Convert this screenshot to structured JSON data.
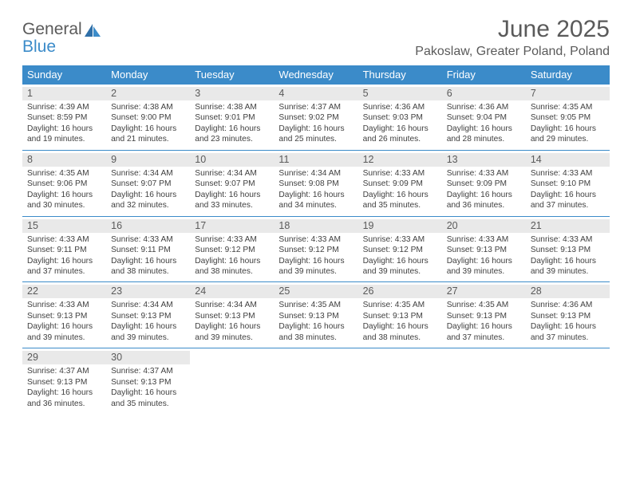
{
  "brand": {
    "word1": "General",
    "word2": "Blue"
  },
  "title": "June 2025",
  "location": "Pakoslaw, Greater Poland, Poland",
  "colors": {
    "accent": "#3b8bc9",
    "header_text": "#5a5a5a",
    "daynum_bg": "#e9e9e9",
    "body_text": "#404040",
    "background": "#ffffff"
  },
  "weekdays": [
    "Sunday",
    "Monday",
    "Tuesday",
    "Wednesday",
    "Thursday",
    "Friday",
    "Saturday"
  ],
  "weeks": [
    [
      {
        "n": "1",
        "sr": "4:39 AM",
        "ss": "8:59 PM",
        "dl1": "16 hours",
        "dl2": "and 19 minutes."
      },
      {
        "n": "2",
        "sr": "4:38 AM",
        "ss": "9:00 PM",
        "dl1": "16 hours",
        "dl2": "and 21 minutes."
      },
      {
        "n": "3",
        "sr": "4:38 AM",
        "ss": "9:01 PM",
        "dl1": "16 hours",
        "dl2": "and 23 minutes."
      },
      {
        "n": "4",
        "sr": "4:37 AM",
        "ss": "9:02 PM",
        "dl1": "16 hours",
        "dl2": "and 25 minutes."
      },
      {
        "n": "5",
        "sr": "4:36 AM",
        "ss": "9:03 PM",
        "dl1": "16 hours",
        "dl2": "and 26 minutes."
      },
      {
        "n": "6",
        "sr": "4:36 AM",
        "ss": "9:04 PM",
        "dl1": "16 hours",
        "dl2": "and 28 minutes."
      },
      {
        "n": "7",
        "sr": "4:35 AM",
        "ss": "9:05 PM",
        "dl1": "16 hours",
        "dl2": "and 29 minutes."
      }
    ],
    [
      {
        "n": "8",
        "sr": "4:35 AM",
        "ss": "9:06 PM",
        "dl1": "16 hours",
        "dl2": "and 30 minutes."
      },
      {
        "n": "9",
        "sr": "4:34 AM",
        "ss": "9:07 PM",
        "dl1": "16 hours",
        "dl2": "and 32 minutes."
      },
      {
        "n": "10",
        "sr": "4:34 AM",
        "ss": "9:07 PM",
        "dl1": "16 hours",
        "dl2": "and 33 minutes."
      },
      {
        "n": "11",
        "sr": "4:34 AM",
        "ss": "9:08 PM",
        "dl1": "16 hours",
        "dl2": "and 34 minutes."
      },
      {
        "n": "12",
        "sr": "4:33 AM",
        "ss": "9:09 PM",
        "dl1": "16 hours",
        "dl2": "and 35 minutes."
      },
      {
        "n": "13",
        "sr": "4:33 AM",
        "ss": "9:09 PM",
        "dl1": "16 hours",
        "dl2": "and 36 minutes."
      },
      {
        "n": "14",
        "sr": "4:33 AM",
        "ss": "9:10 PM",
        "dl1": "16 hours",
        "dl2": "and 37 minutes."
      }
    ],
    [
      {
        "n": "15",
        "sr": "4:33 AM",
        "ss": "9:11 PM",
        "dl1": "16 hours",
        "dl2": "and 37 minutes."
      },
      {
        "n": "16",
        "sr": "4:33 AM",
        "ss": "9:11 PM",
        "dl1": "16 hours",
        "dl2": "and 38 minutes."
      },
      {
        "n": "17",
        "sr": "4:33 AM",
        "ss": "9:12 PM",
        "dl1": "16 hours",
        "dl2": "and 38 minutes."
      },
      {
        "n": "18",
        "sr": "4:33 AM",
        "ss": "9:12 PM",
        "dl1": "16 hours",
        "dl2": "and 39 minutes."
      },
      {
        "n": "19",
        "sr": "4:33 AM",
        "ss": "9:12 PM",
        "dl1": "16 hours",
        "dl2": "and 39 minutes."
      },
      {
        "n": "20",
        "sr": "4:33 AM",
        "ss": "9:13 PM",
        "dl1": "16 hours",
        "dl2": "and 39 minutes."
      },
      {
        "n": "21",
        "sr": "4:33 AM",
        "ss": "9:13 PM",
        "dl1": "16 hours",
        "dl2": "and 39 minutes."
      }
    ],
    [
      {
        "n": "22",
        "sr": "4:33 AM",
        "ss": "9:13 PM",
        "dl1": "16 hours",
        "dl2": "and 39 minutes."
      },
      {
        "n": "23",
        "sr": "4:34 AM",
        "ss": "9:13 PM",
        "dl1": "16 hours",
        "dl2": "and 39 minutes."
      },
      {
        "n": "24",
        "sr": "4:34 AM",
        "ss": "9:13 PM",
        "dl1": "16 hours",
        "dl2": "and 39 minutes."
      },
      {
        "n": "25",
        "sr": "4:35 AM",
        "ss": "9:13 PM",
        "dl1": "16 hours",
        "dl2": "and 38 minutes."
      },
      {
        "n": "26",
        "sr": "4:35 AM",
        "ss": "9:13 PM",
        "dl1": "16 hours",
        "dl2": "and 38 minutes."
      },
      {
        "n": "27",
        "sr": "4:35 AM",
        "ss": "9:13 PM",
        "dl1": "16 hours",
        "dl2": "and 37 minutes."
      },
      {
        "n": "28",
        "sr": "4:36 AM",
        "ss": "9:13 PM",
        "dl1": "16 hours",
        "dl2": "and 37 minutes."
      }
    ],
    [
      {
        "n": "29",
        "sr": "4:37 AM",
        "ss": "9:13 PM",
        "dl1": "16 hours",
        "dl2": "and 36 minutes."
      },
      {
        "n": "30",
        "sr": "4:37 AM",
        "ss": "9:13 PM",
        "dl1": "16 hours",
        "dl2": "and 35 minutes."
      },
      null,
      null,
      null,
      null,
      null
    ]
  ],
  "labels": {
    "sunrise": "Sunrise: ",
    "sunset": "Sunset: ",
    "daylight": "Daylight: "
  }
}
